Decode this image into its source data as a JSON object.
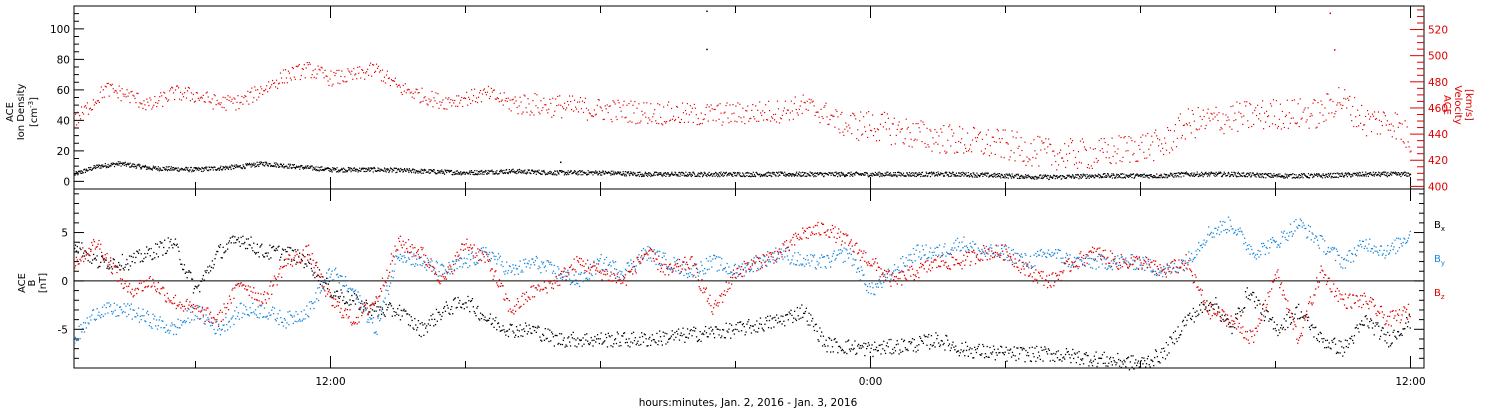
{
  "chart_data": [
    {
      "type": "scatter",
      "panel": "top",
      "xlabel": "hours:minutes, Jan.  2, 2016 - Jan.  3, 2016",
      "x_tick_labels": [
        "12:00",
        "0:00",
        "12:00"
      ],
      "x_range_hours": [
        6.3,
        36.3
      ],
      "ylabel": [
        "ACE",
        "Ion Density",
        "[cm",
        "-3",
        "]"
      ],
      "ylim": [
        -5,
        115
      ],
      "yticks": [
        0,
        20,
        40,
        60,
        80,
        100
      ],
      "y2label": [
        "ACE",
        "Velocity",
        "[km/s]"
      ],
      "y2lim": [
        398,
        538
      ],
      "y2ticks": [
        400,
        420,
        440,
        460,
        480,
        500,
        520
      ],
      "colors": {
        "density": "#000000",
        "velocity": "#e00000"
      },
      "series": [
        {
          "axis": "left",
          "data": [
            [
              6.3,
              5
            ],
            [
              6.8,
              10
            ],
            [
              7.3,
              12
            ],
            [
              8,
              9
            ],
            [
              9,
              8
            ],
            [
              10,
              10
            ],
            [
              10.5,
              12
            ],
            [
              11.2,
              10
            ],
            [
              12,
              8
            ],
            [
              13,
              8
            ],
            [
              14,
              7
            ],
            [
              15,
              6
            ],
            [
              16,
              7
            ],
            [
              17,
              6
            ],
            [
              18,
              6
            ],
            [
              19,
              5
            ],
            [
              20,
              5
            ],
            [
              21,
              5
            ],
            [
              22,
              5
            ],
            [
              23,
              5
            ],
            [
              24,
              5
            ],
            [
              25,
              5
            ],
            [
              26,
              5
            ],
            [
              27,
              4
            ],
            [
              28,
              3
            ],
            [
              29,
              4
            ],
            [
              30,
              4
            ],
            [
              30.5,
              4
            ],
            [
              31,
              5
            ],
            [
              32,
              5
            ],
            [
              33,
              4
            ],
            [
              34,
              4
            ],
            [
              35,
              5
            ],
            [
              36,
              5
            ]
          ],
          "spikes": [
            [
              20.35,
              112
            ],
            [
              20.35,
              87
            ],
            [
              17.1,
              13
            ]
          ]
        },
        {
          "axis": "right",
          "data": [
            [
              6.3,
              450
            ],
            [
              7,
              475
            ],
            [
              7.5,
              470
            ],
            [
              8,
              462
            ],
            [
              8.5,
              472
            ],
            [
              9,
              470
            ],
            [
              9.5,
              464
            ],
            [
              10,
              465
            ],
            [
              10.5,
              475
            ],
            [
              11,
              485
            ],
            [
              11.5,
              490
            ],
            [
              12,
              483
            ],
            [
              12.5,
              485
            ],
            [
              13,
              490
            ],
            [
              13.5,
              476
            ],
            [
              14,
              470
            ],
            [
              14.5,
              465
            ],
            [
              15,
              468
            ],
            [
              15.5,
              471
            ],
            [
              16,
              464
            ],
            [
              17,
              462
            ],
            [
              18,
              459
            ],
            [
              19,
              457
            ],
            [
              20,
              455
            ],
            [
              21,
              456
            ],
            [
              22,
              458
            ],
            [
              22.5,
              462
            ],
            [
              23,
              456
            ],
            [
              23.4,
              447
            ],
            [
              24,
              447
            ],
            [
              24.5,
              444
            ],
            [
              25,
              440
            ],
            [
              26,
              435
            ],
            [
              27,
              432
            ],
            [
              27.5,
              428
            ],
            [
              28,
              425
            ],
            [
              29,
              425
            ],
            [
              30,
              431
            ],
            [
              30.5,
              432
            ],
            [
              31,
              448
            ],
            [
              32,
              453
            ],
            [
              33,
              456
            ],
            [
              34,
              456
            ],
            [
              34.4,
              468
            ],
            [
              35,
              450
            ],
            [
              35.6,
              450
            ],
            [
              36,
              435
            ]
          ],
          "spikes": [
            [
              34.2,
              533
            ],
            [
              34.3,
              505
            ]
          ]
        }
      ]
    },
    {
      "type": "scatter",
      "panel": "bottom",
      "x_tick_labels": [
        "12:00",
        "0:00",
        "12:00"
      ],
      "x_range_hours": [
        6.3,
        36.3
      ],
      "ylabel": [
        "ACE",
        "B",
        "[nT]"
      ],
      "ylim": [
        -9,
        9.5
      ],
      "yticks": [
        -5,
        0,
        5
      ],
      "zero_line": true,
      "legend": {
        "placement": "right"
      },
      "series": [
        {
          "name": "Bx",
          "label_main": "B",
          "label_sub": "x",
          "color": "#000000",
          "data": [
            [
              6.3,
              4
            ],
            [
              6.8,
              2
            ],
            [
              7.5,
              2
            ],
            [
              8,
              3
            ],
            [
              8.5,
              4
            ],
            [
              9,
              -1
            ],
            [
              9.5,
              3
            ],
            [
              10,
              4.5
            ],
            [
              10.5,
              3
            ],
            [
              11,
              3
            ],
            [
              11.5,
              2
            ],
            [
              12,
              -1
            ],
            [
              12.5,
              -2
            ],
            [
              13,
              -3
            ],
            [
              13.5,
              -3
            ],
            [
              14,
              -5
            ],
            [
              14.5,
              -3
            ],
            [
              15,
              -2
            ],
            [
              15.5,
              -4
            ],
            [
              16,
              -5
            ],
            [
              16.5,
              -5
            ],
            [
              17,
              -6
            ],
            [
              18,
              -6
            ],
            [
              19,
              -6
            ],
            [
              20,
              -5.5
            ],
            [
              21,
              -5
            ],
            [
              22,
              -4
            ],
            [
              22.5,
              -3
            ],
            [
              23,
              -6.5
            ],
            [
              24,
              -7
            ],
            [
              25,
              -6.5
            ],
            [
              25.5,
              -6
            ],
            [
              26,
              -7
            ],
            [
              27,
              -7.5
            ],
            [
              28,
              -7.5
            ],
            [
              29,
              -8
            ],
            [
              30,
              -8.5
            ],
            [
              30.5,
              -7.5
            ],
            [
              31,
              -4
            ],
            [
              31.6,
              -2
            ],
            [
              32,
              -5
            ],
            [
              32.4,
              -1
            ],
            [
              33,
              -5
            ],
            [
              33.5,
              -3
            ],
            [
              34,
              -6
            ],
            [
              34.5,
              -7
            ],
            [
              35,
              -4
            ],
            [
              35.5,
              -6
            ],
            [
              36,
              -4
            ]
          ]
        },
        {
          "name": "By",
          "label_main": "B",
          "label_sub": "y",
          "color": "#1c87d8",
          "data": [
            [
              6.3,
              -6
            ],
            [
              6.8,
              -3
            ],
            [
              7.5,
              -3
            ],
            [
              8,
              -4
            ],
            [
              8.5,
              -5
            ],
            [
              9,
              -3
            ],
            [
              9.5,
              -5
            ],
            [
              10,
              -3
            ],
            [
              10.5,
              -3
            ],
            [
              11,
              -4
            ],
            [
              11.5,
              -3
            ],
            [
              12,
              1
            ],
            [
              12.5,
              -1
            ],
            [
              13,
              -5
            ],
            [
              13.5,
              3
            ],
            [
              14,
              2
            ],
            [
              14.5,
              1
            ],
            [
              15,
              2
            ],
            [
              15.5,
              3
            ],
            [
              16,
              1
            ],
            [
              16.5,
              2
            ],
            [
              17,
              1
            ],
            [
              17.5,
              0
            ],
            [
              18,
              2
            ],
            [
              18.5,
              1
            ],
            [
              19,
              3
            ],
            [
              19.5,
              2
            ],
            [
              20,
              1
            ],
            [
              20.5,
              2
            ],
            [
              21,
              1
            ],
            [
              21.5,
              2
            ],
            [
              22,
              3
            ],
            [
              22.5,
              2
            ],
            [
              23,
              2
            ],
            [
              23.5,
              3
            ],
            [
              24,
              -1
            ],
            [
              24.5,
              1
            ],
            [
              25,
              3
            ],
            [
              25.5,
              3
            ],
            [
              26,
              4
            ],
            [
              26.5,
              3
            ],
            [
              27,
              3
            ],
            [
              27.5,
              2
            ],
            [
              28,
              3
            ],
            [
              28.5,
              2
            ],
            [
              29,
              2
            ],
            [
              30,
              2
            ],
            [
              30.5,
              1
            ],
            [
              31,
              2
            ],
            [
              31.5,
              5
            ],
            [
              32,
              6
            ],
            [
              32.5,
              3
            ],
            [
              33,
              4
            ],
            [
              33.5,
              6
            ],
            [
              34,
              4
            ],
            [
              34.5,
              2
            ],
            [
              35,
              4
            ],
            [
              35.5,
              3
            ],
            [
              36,
              5
            ]
          ]
        },
        {
          "name": "Bz",
          "label_main": "B",
          "label_sub": "z",
          "color": "#e00000",
          "data": [
            [
              6.3,
              2
            ],
            [
              6.8,
              4
            ],
            [
              7.5,
              -1
            ],
            [
              8,
              0
            ],
            [
              8.5,
              -2
            ],
            [
              9,
              -3
            ],
            [
              9.5,
              -4
            ],
            [
              10,
              0
            ],
            [
              10.5,
              -2
            ],
            [
              11,
              2
            ],
            [
              11.5,
              3
            ],
            [
              12,
              -2
            ],
            [
              12.5,
              -4
            ],
            [
              13,
              -2
            ],
            [
              13.5,
              4
            ],
            [
              14,
              3
            ],
            [
              14.5,
              0
            ],
            [
              15,
              4
            ],
            [
              15.5,
              2
            ],
            [
              16,
              -3
            ],
            [
              16.5,
              -1
            ],
            [
              17,
              0
            ],
            [
              17.5,
              2
            ],
            [
              18,
              1
            ],
            [
              18.5,
              0
            ],
            [
              19,
              3
            ],
            [
              19.5,
              1
            ],
            [
              20,
              2
            ],
            [
              20.5,
              -3
            ],
            [
              21,
              1
            ],
            [
              21.5,
              2
            ],
            [
              22,
              3
            ],
            [
              22.5,
              5
            ],
            [
              23,
              5.5
            ],
            [
              23.5,
              4
            ],
            [
              24,
              2
            ],
            [
              24.5,
              0
            ],
            [
              25,
              1
            ],
            [
              25.5,
              2
            ],
            [
              26,
              2
            ],
            [
              26.5,
              3
            ],
            [
              27,
              3
            ],
            [
              27.5,
              1
            ],
            [
              28,
              0
            ],
            [
              28.5,
              2
            ],
            [
              29,
              3
            ],
            [
              29.5,
              2
            ],
            [
              30,
              2
            ],
            [
              30.5,
              1
            ],
            [
              31,
              2
            ],
            [
              31.5,
              -3
            ],
            [
              32,
              -4
            ],
            [
              32.5,
              -6
            ],
            [
              33,
              1
            ],
            [
              33.5,
              -6
            ],
            [
              34,
              1
            ],
            [
              34.5,
              -2
            ],
            [
              35,
              -2
            ],
            [
              35.5,
              -4
            ],
            [
              36,
              -3
            ]
          ]
        }
      ]
    }
  ]
}
